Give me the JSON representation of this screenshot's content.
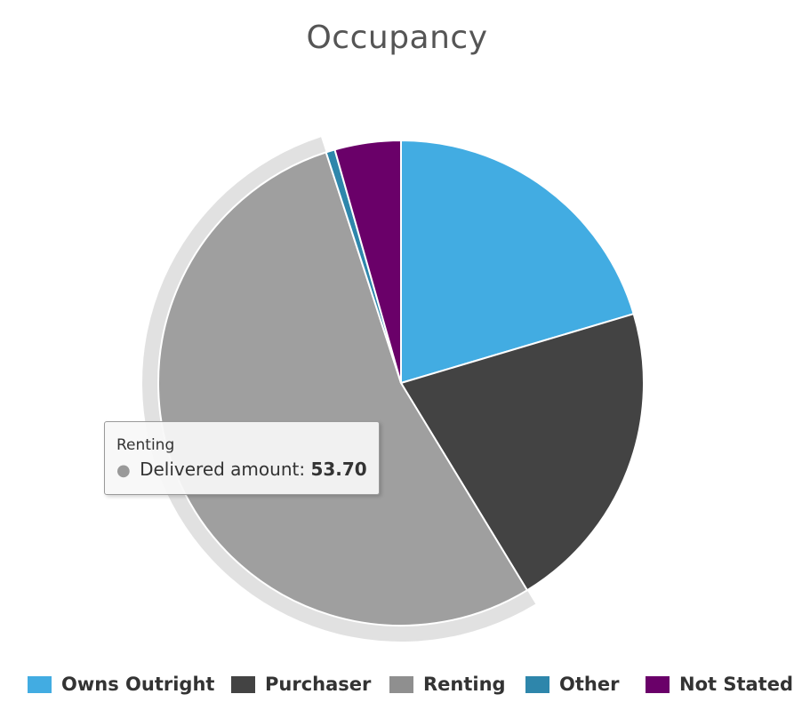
{
  "chart_data": {
    "type": "pie",
    "title": "Occupancy",
    "categories": [
      "Owns Outright",
      "Purchaser",
      "Renting",
      "Other",
      "Not Stated"
    ],
    "values": [
      20.4,
      20.9,
      53.7,
      0.6,
      4.4
    ],
    "series": [
      {
        "name": "Delivered amount",
        "values": [
          20.4,
          20.9,
          53.7,
          0.6,
          4.4
        ]
      }
    ],
    "colors": [
      "#42ace2",
      "#434343",
      "#9f9f9f",
      "#2e86ab",
      "#6a0069"
    ],
    "highlighted": "Renting",
    "legend_position": "bottom"
  },
  "tooltip": {
    "title": "Renting",
    "series_label": "Delivered amount:",
    "value": "53.70"
  },
  "legend": {
    "items": [
      {
        "label": "Owns Outright",
        "color": "#42ace2"
      },
      {
        "label": "Purchaser",
        "color": "#434343"
      },
      {
        "label": "Renting",
        "color": "#8f8f8f"
      },
      {
        "label": "Other",
        "color": "#2e86ab"
      },
      {
        "label": "Not Stated",
        "color": "#6a0069"
      }
    ]
  }
}
